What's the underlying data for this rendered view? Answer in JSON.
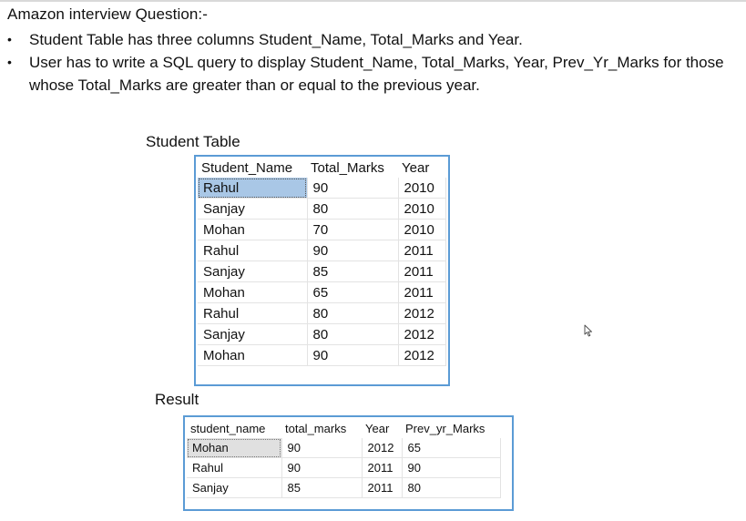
{
  "heading": "Amazon interview Question:-",
  "bullets": [
    "Student Table has three columns Student_Name, Total_Marks and Year.",
    "User has to write a SQL query to display Student_Name, Total_Marks, Year,  Prev_Yr_Marks for those whose Total_Marks are greater than or equal to the previous year."
  ],
  "bullet_symbol": "•",
  "student_table": {
    "caption": "Student Table",
    "headers": [
      "Student_Name",
      "Total_Marks",
      "Year"
    ],
    "rows": [
      [
        "Rahul",
        "90",
        "2010"
      ],
      [
        "Sanjay",
        "80",
        "2010"
      ],
      [
        "Mohan",
        "70",
        "2010"
      ],
      [
        "Rahul",
        "90",
        "2011"
      ],
      [
        "Sanjay",
        "85",
        "2011"
      ],
      [
        "Mohan",
        "65",
        "2011"
      ],
      [
        "Rahul",
        "80",
        "2012"
      ],
      [
        "Sanjay",
        "80",
        "2012"
      ],
      [
        "Mohan",
        "90",
        "2012"
      ]
    ]
  },
  "result_table": {
    "caption": "Result",
    "headers": [
      "student_name",
      "total_marks",
      "Year",
      "Prev_yr_Marks"
    ],
    "rows": [
      [
        "Mohan",
        "90",
        "2012",
        "65"
      ],
      [
        "Rahul",
        "90",
        "2011",
        "90"
      ],
      [
        "Sanjay",
        "85",
        "2011",
        "80"
      ]
    ]
  },
  "colors": {
    "grid_border": "#5b9bd5",
    "selected_cell": "#a9c7e6",
    "selected_cell_inactive": "#e0e0e0"
  },
  "icons": [
    "mouse-cursor-icon"
  ]
}
